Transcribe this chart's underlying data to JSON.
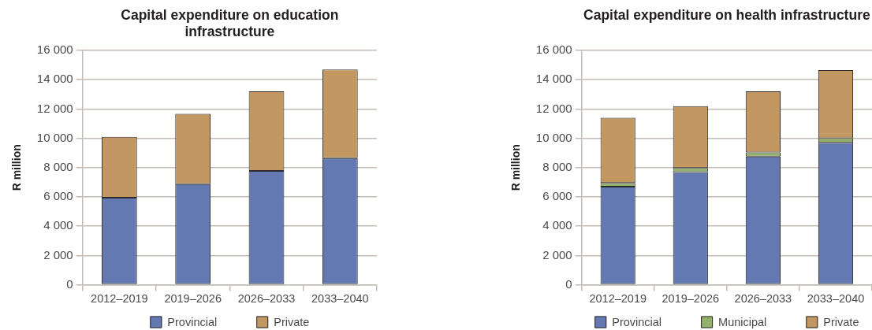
{
  "chart_data": [
    {
      "type": "bar",
      "title": "Capital expenditure on education infrastructure",
      "ylabel": "R million",
      "categories": [
        "2012–2019",
        "2019–2026",
        "2026–2033",
        "2033–2040"
      ],
      "stacked": true,
      "series": [
        {
          "name": "Provincial",
          "color": "#6479b2",
          "values": [
            5950,
            6870,
            7780,
            8650
          ]
        },
        {
          "name": "Private",
          "color": "#c29762",
          "values": [
            4150,
            4800,
            5420,
            6050
          ]
        }
      ],
      "ylim": [
        0,
        16000
      ],
      "yticks": [
        0,
        {
          "value": 2000,
          "label": "2 000"
        },
        {
          "value": 4000,
          "label": "4 000"
        },
        {
          "value": 6000,
          "label": "6 000"
        },
        {
          "value": 8000,
          "label": "8 000"
        },
        {
          "value": 10000,
          "label": "10 000"
        },
        {
          "value": 12000,
          "label": "12 000"
        },
        {
          "value": 14000,
          "label": "14 000"
        },
        {
          "value": 16000,
          "label": "16 000"
        }
      ],
      "grid": "y",
      "legend": "bottom"
    },
    {
      "type": "bar",
      "title": "Capital expenditure on health infrastructure",
      "ylabel": "R million",
      "categories": [
        "2012–2019",
        "2019–2026",
        "2026–2033",
        "2033–2040"
      ],
      "stacked": true,
      "series": [
        {
          "name": "Provincial",
          "color": "#6479b2",
          "values": [
            6700,
            7700,
            8750,
            9700
          ]
        },
        {
          "name": "Municipal",
          "color": "#93b16b",
          "values": [
            250,
            270,
            290,
            300
          ]
        },
        {
          "name": "Private",
          "color": "#c29762",
          "values": [
            4450,
            4230,
            4160,
            4650
          ]
        }
      ],
      "ylim": [
        0,
        16000
      ],
      "yticks": [
        0,
        {
          "value": 2000,
          "label": "2 000"
        },
        {
          "value": 4000,
          "label": "4 000"
        },
        {
          "value": 6000,
          "label": "6 000"
        },
        {
          "value": 8000,
          "label": "8 000"
        },
        {
          "value": 10000,
          "label": "10 000"
        },
        {
          "value": 12000,
          "label": "12 000"
        },
        {
          "value": 14000,
          "label": "14 000"
        },
        {
          "value": 16000,
          "label": "16 000"
        }
      ],
      "grid": "y",
      "legend": "bottom"
    }
  ]
}
